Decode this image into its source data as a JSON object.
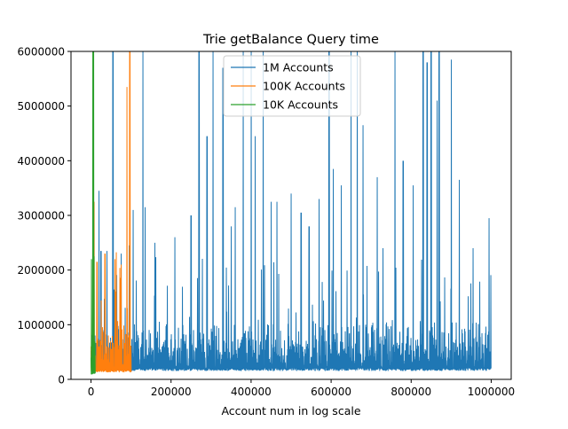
{
  "chart_data": {
    "type": "line",
    "title": "Trie getBalance Query time",
    "xlabel": "Account num in log scale",
    "ylabel": "",
    "xlim": [
      -50000,
      1050000
    ],
    "ylim": [
      0,
      6000000
    ],
    "xticks": [
      0,
      200000,
      400000,
      600000,
      800000,
      1000000
    ],
    "xtick_labels": [
      "0",
      "200000",
      "400000",
      "600000",
      "800000",
      "1000000"
    ],
    "yticks": [
      0,
      1000000,
      2000000,
      3000000,
      4000000,
      5000000,
      6000000
    ],
    "ytick_labels": [
      "0",
      "1000000",
      "2000000",
      "3000000",
      "4000000",
      "5000000",
      "6000000"
    ],
    "grid": false,
    "legend_position": "top-center",
    "colors": {
      "series1": "#1f77b4",
      "series2": "#ff7f0e",
      "series3": "#2ca02c"
    },
    "series": [
      {
        "name": "1M Accounts",
        "color": "#1f77b4",
        "x_range": [
          0,
          1000000
        ],
        "baseline": 180000,
        "dense_band_top": 1200000,
        "spikes": [
          {
            "x": 20000,
            "y": 3450000
          },
          {
            "x": 25000,
            "y": 2350000
          },
          {
            "x": 40000,
            "y": 2350000
          },
          {
            "x": 55000,
            "y": 6000000
          },
          {
            "x": 75000,
            "y": 2300000
          },
          {
            "x": 95000,
            "y": 2450000
          },
          {
            "x": 105000,
            "y": 3100000
          },
          {
            "x": 130000,
            "y": 6000000
          },
          {
            "x": 135000,
            "y": 3150000
          },
          {
            "x": 160000,
            "y": 2500000
          },
          {
            "x": 210000,
            "y": 2600000
          },
          {
            "x": 250000,
            "y": 3000000
          },
          {
            "x": 270000,
            "y": 6000000
          },
          {
            "x": 290000,
            "y": 4450000
          },
          {
            "x": 305000,
            "y": 6000000
          },
          {
            "x": 330000,
            "y": 5700000
          },
          {
            "x": 350000,
            "y": 2800000
          },
          {
            "x": 360000,
            "y": 3150000
          },
          {
            "x": 380000,
            "y": 6000000
          },
          {
            "x": 400000,
            "y": 6000000
          },
          {
            "x": 410000,
            "y": 4450000
          },
          {
            "x": 430000,
            "y": 6000000
          },
          {
            "x": 450000,
            "y": 3250000
          },
          {
            "x": 465000,
            "y": 3250000
          },
          {
            "x": 500000,
            "y": 3400000
          },
          {
            "x": 525000,
            "y": 3050000
          },
          {
            "x": 545000,
            "y": 2800000
          },
          {
            "x": 570000,
            "y": 3300000
          },
          {
            "x": 595000,
            "y": 6000000
          },
          {
            "x": 605000,
            "y": 3850000
          },
          {
            "x": 625000,
            "y": 3550000
          },
          {
            "x": 650000,
            "y": 6000000
          },
          {
            "x": 665000,
            "y": 6000000
          },
          {
            "x": 680000,
            "y": 4650000
          },
          {
            "x": 715000,
            "y": 3700000
          },
          {
            "x": 730000,
            "y": 2400000
          },
          {
            "x": 760000,
            "y": 6000000
          },
          {
            "x": 780000,
            "y": 4000000
          },
          {
            "x": 805000,
            "y": 3550000
          },
          {
            "x": 830000,
            "y": 6000000
          },
          {
            "x": 840000,
            "y": 5800000
          },
          {
            "x": 850000,
            "y": 6000000
          },
          {
            "x": 865000,
            "y": 5100000
          },
          {
            "x": 870000,
            "y": 6000000
          },
          {
            "x": 900000,
            "y": 5850000
          },
          {
            "x": 920000,
            "y": 3650000
          },
          {
            "x": 955000,
            "y": 2400000
          },
          {
            "x": 995000,
            "y": 2950000
          }
        ]
      },
      {
        "name": "100K Accounts",
        "color": "#ff7f0e",
        "x_range": [
          0,
          100000
        ],
        "baseline": 150000,
        "dense_band_top": 1300000,
        "spikes": [
          {
            "x": 8000,
            "y": 3250000
          },
          {
            "x": 15000,
            "y": 2150000
          },
          {
            "x": 35000,
            "y": 2300000
          },
          {
            "x": 60000,
            "y": 2200000
          },
          {
            "x": 75000,
            "y": 2100000
          },
          {
            "x": 90000,
            "y": 5350000
          },
          {
            "x": 97000,
            "y": 6000000
          }
        ]
      },
      {
        "name": "10K Accounts",
        "color": "#2ca02c",
        "x_range": [
          0,
          10000
        ],
        "baseline": 100000,
        "dense_band_top": 1200000,
        "spikes": [
          {
            "x": 1500,
            "y": 2200000
          },
          {
            "x": 4000,
            "y": 6000000
          },
          {
            "x": 6000,
            "y": 6000000
          },
          {
            "x": 8000,
            "y": 2250000
          }
        ]
      }
    ]
  }
}
